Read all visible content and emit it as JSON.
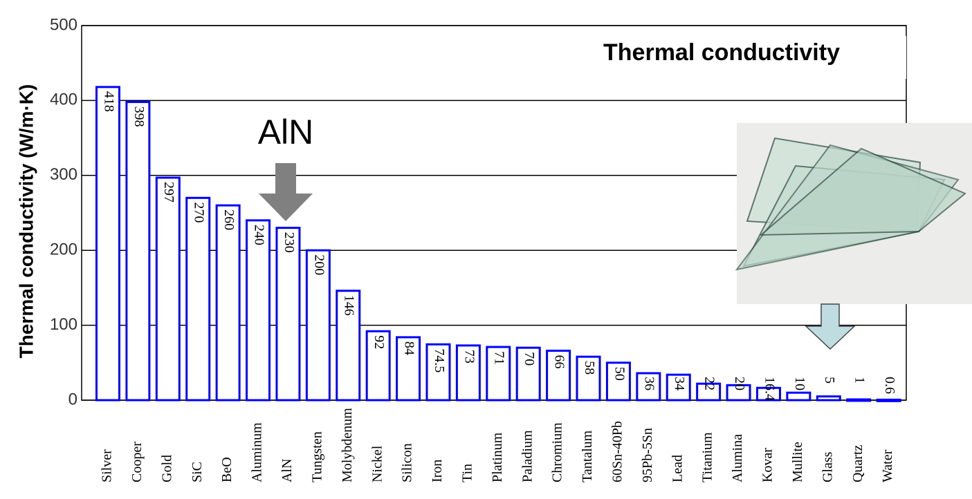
{
  "chart_data": {
    "type": "bar",
    "title": "Thermal conductivity",
    "y_label": "Thermal conductivity  (W/m·K)",
    "annotation": "AlN",
    "categories": [
      "Silver",
      "Cooper",
      "Gold",
      "SiC",
      "BeO",
      "Aluminum",
      "AlN",
      "Tungsten",
      "Molybdenum",
      "Nickel",
      "Silicon",
      "Iron",
      "Tin",
      "Platinum",
      "Paladium",
      "Chromium",
      "Tantalum",
      "60Sn-40Pb",
      "95Pb-5Sn",
      "Lead",
      "Titanium",
      "Alumina",
      "Kovar",
      "Mullite",
      "Glass",
      "Quartz",
      "Water"
    ],
    "values": [
      418,
      398,
      297,
      270,
      260,
      240,
      230,
      200,
      146,
      92,
      84,
      74.5,
      73,
      71,
      70,
      66,
      58,
      50,
      36,
      34,
      22,
      20,
      16.4,
      10,
      5,
      1,
      0.6
    ],
    "color": "#0000ff",
    "ylim": [
      0,
      500
    ],
    "yticks": [
      0,
      100,
      200,
      300,
      400,
      500
    ],
    "grid": true
  }
}
